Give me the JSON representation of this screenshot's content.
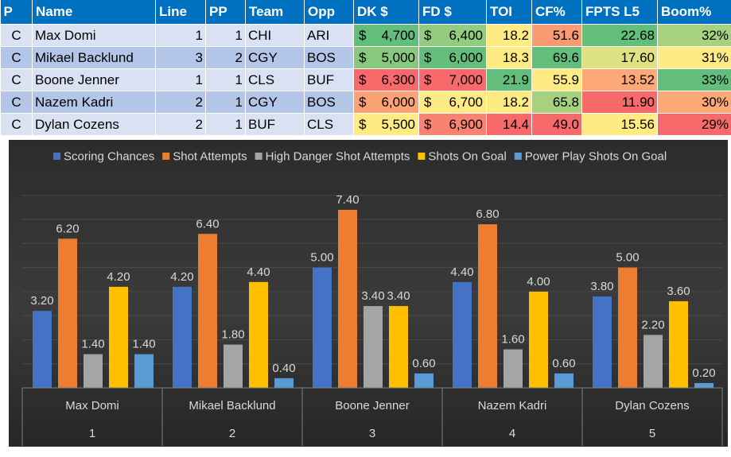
{
  "table": {
    "headers": [
      "P",
      "Name",
      "Line",
      "PP",
      "Team",
      "Opp",
      "DK $",
      "FD $",
      "TOI",
      "CF%",
      "FPTS L5",
      "Boom%"
    ],
    "rows": [
      {
        "p": "C",
        "name": "Max Domi",
        "line": "1",
        "pp": "1",
        "team": "CHI",
        "opp": "ARI",
        "dk": "4,700",
        "fd": "6,400",
        "toi": "18.2",
        "cf": "51.6",
        "fpts": "22.68",
        "boom": "32%",
        "colors": {
          "dk": "#63be7b",
          "fd": "#93cc7e",
          "toi": "#ffeb84",
          "cf": "#fa9b74",
          "fpts": "#63be7b",
          "boom": "#a6d17e"
        }
      },
      {
        "p": "C",
        "name": "Mikael Backlund",
        "line": "3",
        "pp": "2",
        "team": "CGY",
        "opp": "BOS",
        "dk": "5,000",
        "fd": "6,000",
        "toi": "18.3",
        "cf": "69.6",
        "fpts": "17.60",
        "boom": "31%",
        "colors": {
          "dk": "#88c87d",
          "fd": "#63be7b",
          "toi": "#ffeb84",
          "cf": "#63be7b",
          "fpts": "#dfe282",
          "boom": "#ffeb84"
        }
      },
      {
        "p": "C",
        "name": "Boone Jenner",
        "line": "1",
        "pp": "1",
        "team": "CLS",
        "opp": "BUF",
        "dk": "6,300",
        "fd": "7,000",
        "toi": "21.9",
        "cf": "55.9",
        "fpts": "13.52",
        "boom": "33%",
        "colors": {
          "dk": "#f8696b",
          "fd": "#f8696b",
          "toi": "#63be7b",
          "cf": "#ffeb84",
          "fpts": "#fca877",
          "boom": "#63be7b"
        }
      },
      {
        "p": "C",
        "name": "Nazem Kadri",
        "line": "2",
        "pp": "1",
        "team": "CGY",
        "opp": "BOS",
        "dk": "6,000",
        "fd": "6,700",
        "toi": "18.2",
        "cf": "65.8",
        "fpts": "11.90",
        "boom": "30%",
        "colors": {
          "dk": "#fba276",
          "fd": "#ffeb84",
          "toi": "#ffeb84",
          "cf": "#a6d17e",
          "fpts": "#f8696b",
          "boom": "#fca877"
        }
      },
      {
        "p": "C",
        "name": "Dylan Cozens",
        "line": "2",
        "pp": "1",
        "team": "BUF",
        "opp": "CLS",
        "dk": "5,500",
        "fd": "6,900",
        "toi": "14.4",
        "cf": "49.0",
        "fpts": "15.56",
        "boom": "29%",
        "colors": {
          "dk": "#ffeb84",
          "fd": "#f98370",
          "toi": "#f8696b",
          "cf": "#f8696b",
          "fpts": "#ffeb84",
          "boom": "#f8696b"
        }
      }
    ]
  },
  "chart_data": {
    "type": "bar",
    "categories": [
      "Max Domi",
      "Mikael Backlund",
      "Boone Jenner",
      "Nazem Kadri",
      "Dylan Cozens"
    ],
    "category_index": [
      "1",
      "2",
      "3",
      "4",
      "5"
    ],
    "series": [
      {
        "name": "Scoring Chances",
        "color": "#4472c4",
        "values": [
          3.2,
          4.2,
          5.0,
          4.4,
          3.8
        ],
        "labels": [
          "3.20",
          "4.20",
          "5.00",
          "4.40",
          "3.80"
        ]
      },
      {
        "name": "Shot Attempts",
        "color": "#ed7d31",
        "values": [
          6.2,
          6.4,
          7.4,
          6.8,
          5.0
        ],
        "labels": [
          "6.20",
          "6.40",
          "7.40",
          "6.80",
          "5.00"
        ]
      },
      {
        "name": "High Danger Shot Attempts",
        "color": "#a5a5a5",
        "values": [
          1.4,
          1.8,
          3.4,
          1.6,
          2.2
        ],
        "labels": [
          "1.40",
          "1.80",
          "3.40",
          "1.60",
          "2.20"
        ]
      },
      {
        "name": "Shots On Goal",
        "color": "#ffc000",
        "values": [
          4.2,
          4.4,
          3.4,
          4.0,
          3.6
        ],
        "labels": [
          "4.20",
          "4.40",
          "3.40",
          "4.00",
          "3.60"
        ]
      },
      {
        "name": "Power Play Shots On Goal",
        "color": "#5b9bd5",
        "values": [
          1.4,
          0.4,
          0.6,
          0.6,
          0.2
        ],
        "labels": [
          "1.40",
          "0.40",
          "0.60",
          "0.60",
          "0.20"
        ]
      }
    ],
    "title": "",
    "xlabel": "",
    "ylabel": "",
    "ylim": [
      0,
      8
    ],
    "grid": true,
    "legend": "top"
  }
}
